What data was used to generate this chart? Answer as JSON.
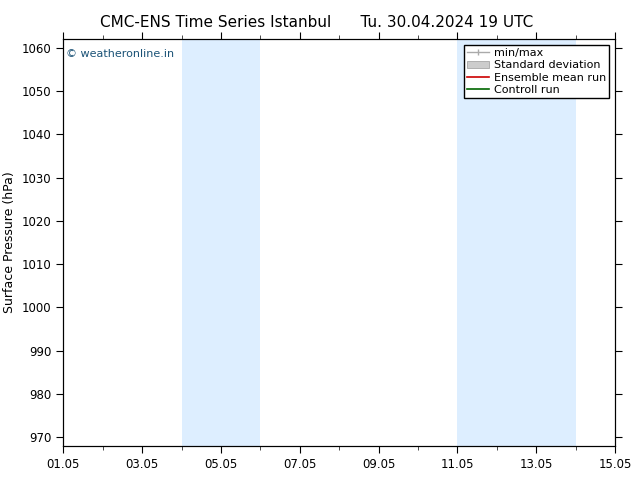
{
  "title": "CMC-ENS Time Series Istanbul",
  "title2": "Tu. 30.04.2024 19 UTC",
  "ylabel": "Surface Pressure (hPa)",
  "ylim": [
    968,
    1062
  ],
  "yticks": [
    970,
    980,
    990,
    1000,
    1010,
    1020,
    1030,
    1040,
    1050,
    1060
  ],
  "xtick_labels": [
    "01.05",
    "03.05",
    "05.05",
    "07.05",
    "09.05",
    "11.05",
    "13.05",
    "15.05"
  ],
  "xtick_positions": [
    0,
    2,
    4,
    6,
    8,
    10,
    12,
    14
  ],
  "xlim": [
    0,
    14
  ],
  "shaded_bands": [
    {
      "x_start": 3.0,
      "x_end": 5.0,
      "color": "#ddeeff"
    },
    {
      "x_start": 10.0,
      "x_end": 13.0,
      "color": "#ddeeff"
    }
  ],
  "watermark_text": "© weatheronline.in",
  "watermark_color": "#1a5276",
  "legend_items": [
    {
      "label": "min/max",
      "color": "#aaaaaa",
      "type": "line"
    },
    {
      "label": "Standard deviation",
      "color": "#cccccc",
      "type": "fill"
    },
    {
      "label": "Ensemble mean run",
      "color": "#cc0000",
      "type": "line"
    },
    {
      "label": "Controll run",
      "color": "#006600",
      "type": "line"
    }
  ],
  "bg_color": "#ffffff",
  "plot_bg_color": "#ffffff",
  "tick_label_fontsize": 8.5,
  "axis_label_fontsize": 9,
  "title_fontsize": 11,
  "legend_fontsize": 8
}
